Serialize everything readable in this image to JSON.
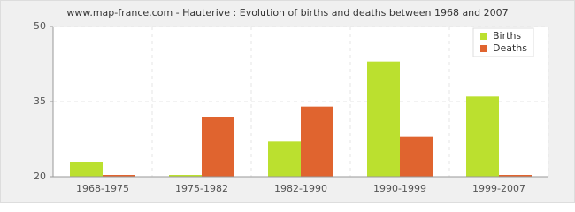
{
  "chart_data": {
    "type": "bar",
    "title": "www.map-france.com - Hauterive : Evolution of births and deaths between 1968 and 2007",
    "categories": [
      "1968-1975",
      "1975-1982",
      "1982-1990",
      "1990-1999",
      "1999-2007"
    ],
    "series": [
      {
        "name": "Births",
        "color": "#bbe02f",
        "values": [
          23,
          20,
          27,
          43,
          36
        ]
      },
      {
        "name": "Deaths",
        "color": "#e0642f",
        "values": [
          20,
          32,
          34,
          28,
          20
        ]
      }
    ],
    "ylim": [
      20,
      50
    ],
    "yticks": [
      20,
      35,
      50
    ],
    "grid": true,
    "legend": "top-right"
  }
}
